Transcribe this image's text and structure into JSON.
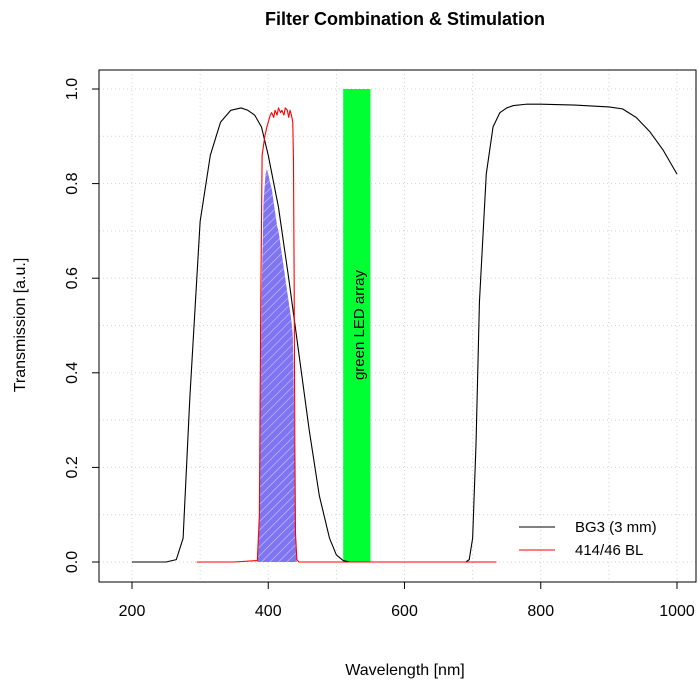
{
  "chart_data": {
    "type": "line",
    "title": "Filter Combination & Stimulation",
    "xlabel": "Wavelength [nm]",
    "ylabel": "Transmission [a.u.]",
    "xlim": [
      200,
      1000
    ],
    "ylim": [
      0,
      1
    ],
    "x_ticks": [
      200,
      400,
      600,
      800,
      1000
    ],
    "y_ticks": [
      0.0,
      0.2,
      0.4,
      0.6,
      0.8,
      1.0
    ],
    "x_tick_labels": [
      "200",
      "400",
      "600",
      "800",
      "1000"
    ],
    "y_tick_labels": [
      "0.0",
      "0.2",
      "0.4",
      "0.6",
      "0.8",
      "1.0"
    ],
    "grid": true,
    "legend_position": "bottom-right",
    "series": [
      {
        "name": "BG3 (3 mm)",
        "color": "#000000",
        "x": [
          200,
          250,
          265,
          275,
          285,
          300,
          315,
          330,
          345,
          360,
          370,
          380,
          390,
          400,
          415,
          430,
          445,
          460,
          475,
          490,
          500,
          510,
          520,
          540,
          600,
          650,
          690,
          695,
          700,
          705,
          710,
          720,
          730,
          740,
          750,
          760,
          780,
          800,
          850,
          900,
          920,
          940,
          960,
          980,
          1000
        ],
        "y": [
          0.0,
          0.0,
          0.005,
          0.05,
          0.35,
          0.72,
          0.86,
          0.93,
          0.955,
          0.96,
          0.955,
          0.945,
          0.92,
          0.86,
          0.75,
          0.6,
          0.44,
          0.28,
          0.14,
          0.05,
          0.015,
          0.003,
          0.0,
          0.0,
          0.0,
          0.0,
          0.0,
          0.005,
          0.05,
          0.25,
          0.55,
          0.82,
          0.92,
          0.95,
          0.96,
          0.965,
          0.968,
          0.968,
          0.966,
          0.962,
          0.958,
          0.94,
          0.91,
          0.87,
          0.82
        ]
      },
      {
        "name": "414/46 BL",
        "color": "#ff0000",
        "x": [
          295,
          350,
          384,
          387,
          389,
          391,
          393,
          395,
          398,
          400,
          403,
          405,
          408,
          410,
          413,
          415,
          418,
          420,
          423,
          425,
          428,
          430,
          432,
          434,
          436,
          437,
          438,
          439,
          440,
          442,
          445,
          500,
          600,
          735
        ],
        "y": [
          0.0,
          0.0,
          0.003,
          0.1,
          0.55,
          0.86,
          0.88,
          0.9,
          0.92,
          0.93,
          0.945,
          0.95,
          0.94,
          0.955,
          0.945,
          0.96,
          0.95,
          0.955,
          0.945,
          0.96,
          0.955,
          0.94,
          0.955,
          0.945,
          0.93,
          0.85,
          0.6,
          0.25,
          0.06,
          0.005,
          0.0,
          0.0,
          0.0,
          0.0
        ]
      }
    ],
    "overlap_area": {
      "color": "#7f74f1",
      "x": [
        384,
        387,
        390,
        393,
        396,
        398,
        400,
        403,
        405,
        408,
        410,
        413,
        415,
        418,
        420,
        423,
        425,
        428,
        430,
        432,
        434,
        436,
        437,
        438,
        439,
        440,
        442
      ],
      "y": [
        0.003,
        0.1,
        0.55,
        0.76,
        0.82,
        0.83,
        0.82,
        0.8,
        0.79,
        0.76,
        0.74,
        0.71,
        0.7,
        0.67,
        0.65,
        0.62,
        0.6,
        0.57,
        0.55,
        0.53,
        0.51,
        0.48,
        0.42,
        0.3,
        0.15,
        0.04,
        0.003
      ]
    },
    "stimulation_band": {
      "label": "green LED array",
      "color": "#00ff33",
      "x_range": [
        510,
        550
      ],
      "y_range": [
        0,
        1
      ]
    }
  }
}
